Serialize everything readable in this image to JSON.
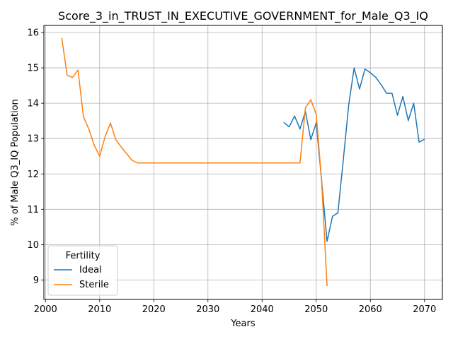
{
  "chart_data": {
    "type": "line",
    "title": "Score_3_in_TRUST_IN_EXECUTIVE_GOVERNMENT_for_Male_Q3_IQ",
    "xlabel": "Years",
    "ylabel": "% of Male Q3_IQ Population",
    "xlim": [
      1999.7,
      2073.3
    ],
    "ylim": [
      8.45,
      16.2
    ],
    "xticks": [
      2000,
      2010,
      2020,
      2030,
      2040,
      2050,
      2060,
      2070
    ],
    "yticks": [
      9,
      10,
      11,
      12,
      13,
      14,
      15,
      16
    ],
    "grid": true,
    "legend": {
      "title": "Fertility",
      "placement": "lower-left"
    },
    "series": [
      {
        "name": "Ideal",
        "color": "#1f77b4",
        "points": [
          [
            2044,
            13.46
          ],
          [
            2045,
            13.33
          ],
          [
            2046,
            13.64
          ],
          [
            2047,
            13.27
          ],
          [
            2048,
            13.77
          ],
          [
            2049,
            12.97
          ],
          [
            2050,
            13.45
          ],
          [
            2051,
            11.8
          ],
          [
            2052,
            10.09
          ],
          [
            2053,
            10.8
          ],
          [
            2054,
            10.9
          ],
          [
            2055,
            12.4
          ],
          [
            2056,
            13.95
          ],
          [
            2057,
            15.0
          ],
          [
            2058,
            14.4
          ],
          [
            2059,
            14.97
          ],
          [
            2060,
            14.86
          ],
          [
            2061,
            14.73
          ],
          [
            2062,
            14.52
          ],
          [
            2063,
            14.28
          ],
          [
            2064,
            14.28
          ],
          [
            2065,
            13.66
          ],
          [
            2066,
            14.19
          ],
          [
            2067,
            13.51
          ],
          [
            2068,
            14.0
          ],
          [
            2069,
            12.9
          ],
          [
            2070,
            12.98
          ]
        ]
      },
      {
        "name": "Sterile",
        "color": "#ff7f0e",
        "points": [
          [
            2003,
            15.85
          ],
          [
            2004,
            14.79
          ],
          [
            2005,
            14.73
          ],
          [
            2006,
            14.94
          ],
          [
            2007,
            13.62
          ],
          [
            2008,
            13.27
          ],
          [
            2009,
            12.81
          ],
          [
            2010,
            12.5
          ],
          [
            2011,
            13.05
          ],
          [
            2012,
            13.44
          ],
          [
            2013,
            12.96
          ],
          [
            2014,
            12.76
          ],
          [
            2015,
            12.57
          ],
          [
            2016,
            12.38
          ],
          [
            2017,
            12.31
          ],
          [
            2018,
            12.31
          ],
          [
            2047,
            12.31
          ],
          [
            2048,
            13.87
          ],
          [
            2049,
            14.1
          ],
          [
            2050,
            13.68
          ],
          [
            2051,
            11.8
          ],
          [
            2052,
            8.83
          ]
        ]
      }
    ]
  }
}
